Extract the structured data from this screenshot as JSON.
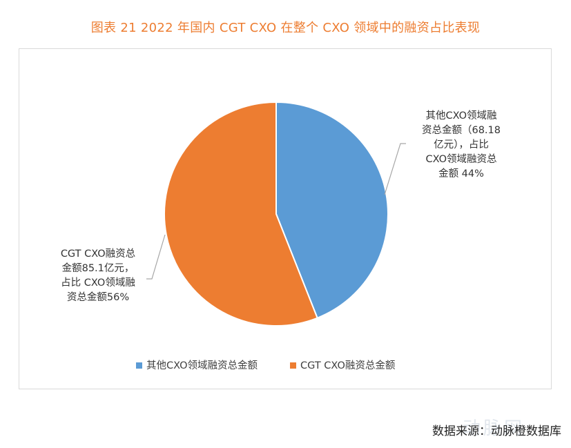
{
  "title": "图表  21 2022 年国内 CGT CXO 在整个 CXO 领域中的融资占比表现",
  "chart_data": {
    "type": "pie",
    "slices": [
      {
        "name": "其他CXO领域融资总金额",
        "value": 68.18,
        "percent": 44,
        "color": "#5B9BD5",
        "label_lines": [
          "其他CXO领域融",
          "资总金额（68.18",
          "亿元），占比",
          "CXO领域融资总",
          "金额 44%"
        ]
      },
      {
        "name": "CGT CXO融资总金额",
        "value": 85.1,
        "percent": 56,
        "color": "#ED7D31",
        "label_lines": [
          "CGT CXO融资总",
          "金额85.1亿元，",
          "占比 CXO领域融",
          "资总金额56%"
        ]
      }
    ],
    "legend_position": "bottom"
  },
  "source": "数据来源：动脉橙数据库",
  "watermark": "动脉网"
}
